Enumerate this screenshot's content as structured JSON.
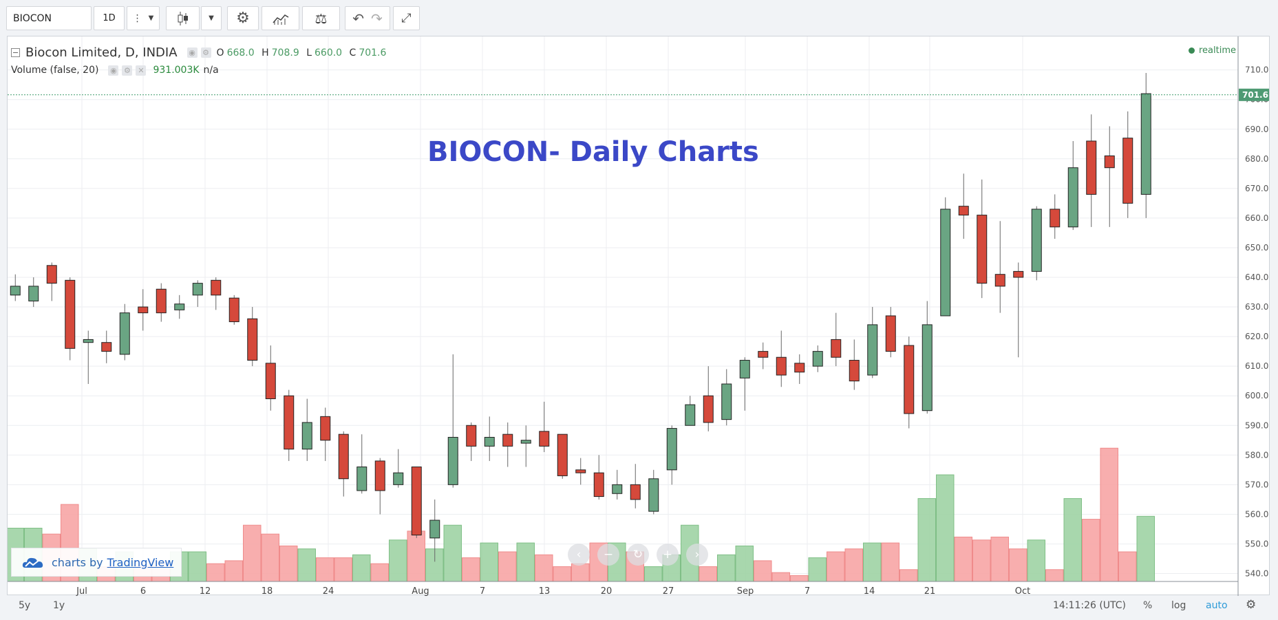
{
  "toolbar": {
    "symbol": "BIOCON",
    "resolution": "1D"
  },
  "legend": {
    "name": "Biocon Limited, D, INDIA",
    "o_label": "O",
    "o": "668.0",
    "h_label": "H",
    "h": "708.9",
    "l_label": "L",
    "l": "660.0",
    "c_label": "C",
    "c": "701.6",
    "volume_label": "Volume (false, 20)",
    "volume_value": "931.003K",
    "volume_ma": "n/a",
    "realtime": "realtime"
  },
  "title": "BIOCON- Daily Charts",
  "branding": {
    "prefix": "charts by",
    "link": "TradingView"
  },
  "bottom": {
    "range_5y": "5y",
    "range_1y": "1y",
    "time": "14:11:26 (UTC)",
    "percent": "%",
    "log": "log",
    "auto": "auto"
  },
  "colors": {
    "up": "#6aa583",
    "down": "#d5493b",
    "vol_up": "#9fd3a4",
    "vol_down": "#f7a5a5",
    "title": "#3b48c7"
  },
  "chart_data": {
    "type": "candlestick",
    "y_ticks": [
      540,
      550,
      560,
      570,
      580,
      590,
      600,
      610,
      620,
      630,
      640,
      650,
      660,
      670,
      680,
      690,
      700,
      710
    ],
    "ylim": [
      535,
      714
    ],
    "last_price": "701.6",
    "x_ticks": [
      "Jul",
      "6",
      "12",
      "18",
      "24",
      "Aug",
      "7",
      "13",
      "20",
      "27",
      "Sep",
      "7",
      "14",
      "21",
      "Oct"
    ],
    "candles": [
      {
        "o": 634,
        "h": 641,
        "l": 632,
        "c": 637,
        "v": 553
      },
      {
        "o": 632,
        "h": 640,
        "l": 630,
        "c": 637,
        "v": 553
      },
      {
        "o": 644,
        "h": 645,
        "l": 632,
        "c": 638,
        "v": 551
      },
      {
        "o": 639,
        "h": 640,
        "l": 612,
        "c": 616,
        "v": 561
      },
      {
        "o": 618,
        "h": 622,
        "l": 604,
        "c": 619,
        "v": 546
      },
      {
        "o": 618,
        "h": 622,
        "l": 611,
        "c": 615,
        "v": 540
      },
      {
        "o": 614,
        "h": 631,
        "l": 612,
        "c": 628,
        "v": 545
      },
      {
        "o": 630,
        "h": 636,
        "l": 622,
        "c": 628,
        "v": 542
      },
      {
        "o": 636,
        "h": 638,
        "l": 625,
        "c": 628,
        "v": 542
      },
      {
        "o": 629,
        "h": 634,
        "l": 626,
        "c": 631,
        "v": 545
      },
      {
        "o": 634,
        "h": 639,
        "l": 630,
        "c": 638,
        "v": 545
      },
      {
        "o": 639,
        "h": 640,
        "l": 629,
        "c": 634,
        "v": 541
      },
      {
        "o": 633,
        "h": 634,
        "l": 624,
        "c": 625,
        "v": 542
      },
      {
        "o": 626,
        "h": 630,
        "l": 610,
        "c": 612,
        "v": 554
      },
      {
        "o": 611,
        "h": 617,
        "l": 595,
        "c": 599,
        "v": 551
      },
      {
        "o": 600,
        "h": 602,
        "l": 578,
        "c": 582,
        "v": 547
      },
      {
        "o": 582,
        "h": 599,
        "l": 578,
        "c": 591,
        "v": 546
      },
      {
        "o": 593,
        "h": 596,
        "l": 578,
        "c": 585,
        "v": 543
      },
      {
        "o": 587,
        "h": 588,
        "l": 566,
        "c": 572,
        "v": 543
      },
      {
        "o": 568,
        "h": 587,
        "l": 567,
        "c": 576,
        "v": 544
      },
      {
        "o": 578,
        "h": 579,
        "l": 560,
        "c": 568,
        "v": 541
      },
      {
        "o": 570,
        "h": 582,
        "l": 569,
        "c": 574,
        "v": 549
      },
      {
        "o": 576,
        "h": 576,
        "l": 552,
        "c": 553,
        "v": 552
      },
      {
        "o": 552,
        "h": 565,
        "l": 544,
        "c": 558,
        "v": 546
      },
      {
        "o": 570,
        "h": 614,
        "l": 569,
        "c": 586,
        "v": 554
      },
      {
        "o": 590,
        "h": 591,
        "l": 578,
        "c": 583,
        "v": 543
      },
      {
        "o": 583,
        "h": 593,
        "l": 578,
        "c": 586,
        "v": 548
      },
      {
        "o": 587,
        "h": 591,
        "l": 576,
        "c": 583,
        "v": 545
      },
      {
        "o": 584,
        "h": 590,
        "l": 576,
        "c": 585,
        "v": 548
      },
      {
        "o": 588,
        "h": 598,
        "l": 581,
        "c": 583,
        "v": 544
      },
      {
        "o": 587,
        "h": 587,
        "l": 572,
        "c": 573,
        "v": 540
      },
      {
        "o": 575,
        "h": 579,
        "l": 570,
        "c": 574,
        "v": 541
      },
      {
        "o": 574,
        "h": 580,
        "l": 565,
        "c": 566,
        "v": 548
      },
      {
        "o": 567,
        "h": 575,
        "l": 565,
        "c": 570,
        "v": 548
      },
      {
        "o": 570,
        "h": 577,
        "l": 562,
        "c": 565,
        "v": 545
      },
      {
        "o": 561,
        "h": 575,
        "l": 560,
        "c": 572,
        "v": 540
      },
      {
        "o": 575,
        "h": 590,
        "l": 570,
        "c": 589,
        "v": 544
      },
      {
        "o": 590,
        "h": 600,
        "l": 590,
        "c": 597,
        "v": 554
      },
      {
        "o": 600,
        "h": 610,
        "l": 588,
        "c": 591,
        "v": 540
      },
      {
        "o": 592,
        "h": 609,
        "l": 590,
        "c": 604,
        "v": 544
      },
      {
        "o": 606,
        "h": 613,
        "l": 595,
        "c": 612,
        "v": 547
      },
      {
        "o": 615,
        "h": 618,
        "l": 609,
        "c": 613,
        "v": 542
      },
      {
        "o": 613,
        "h": 622,
        "l": 603,
        "c": 607,
        "v": 538
      },
      {
        "o": 611,
        "h": 614,
        "l": 604,
        "c": 608,
        "v": 537
      },
      {
        "o": 610,
        "h": 617,
        "l": 608,
        "c": 615,
        "v": 543
      },
      {
        "o": 619,
        "h": 628,
        "l": 610,
        "c": 613,
        "v": 545
      },
      {
        "o": 612,
        "h": 619,
        "l": 602,
        "c": 605,
        "v": 546
      },
      {
        "o": 607,
        "h": 630,
        "l": 606,
        "c": 624,
        "v": 548
      },
      {
        "o": 627,
        "h": 630,
        "l": 613,
        "c": 615,
        "v": 548
      },
      {
        "o": 617,
        "h": 620,
        "l": 589,
        "c": 594,
        "v": 539
      },
      {
        "o": 595,
        "h": 632,
        "l": 594,
        "c": 624,
        "v": 563
      },
      {
        "o": 627,
        "h": 667,
        "l": 627,
        "c": 663,
        "v": 571
      },
      {
        "o": 664,
        "h": 675,
        "l": 653,
        "c": 661,
        "v": 550
      },
      {
        "o": 661,
        "h": 673,
        "l": 633,
        "c": 638,
        "v": 549
      },
      {
        "o": 641,
        "h": 659,
        "l": 628,
        "c": 637,
        "v": 550
      },
      {
        "o": 642,
        "h": 645,
        "l": 613,
        "c": 640,
        "v": 546
      },
      {
        "o": 642,
        "h": 664,
        "l": 639,
        "c": 663,
        "v": 549
      },
      {
        "o": 663,
        "h": 668,
        "l": 653,
        "c": 657,
        "v": 539
      },
      {
        "o": 657,
        "h": 686,
        "l": 656,
        "c": 677,
        "v": 563
      },
      {
        "o": 686,
        "h": 695,
        "l": 657,
        "c": 668,
        "v": 556
      },
      {
        "o": 681,
        "h": 691,
        "l": 657,
        "c": 677,
        "v": 580
      },
      {
        "o": 687,
        "h": 696,
        "l": 660,
        "c": 665,
        "v": 545
      },
      {
        "o": 668,
        "h": 709,
        "l": 660,
        "c": 702,
        "v": 557
      }
    ]
  }
}
